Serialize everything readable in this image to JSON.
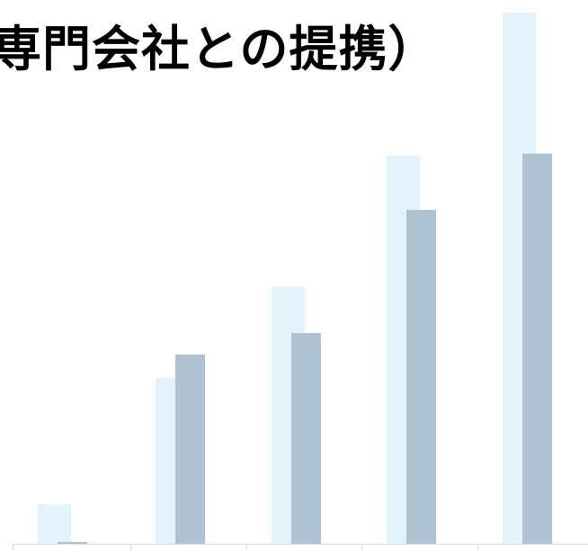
{
  "chart_data": {
    "type": "bar",
    "title": "専門会社との提携）",
    "categories": [
      "",
      "",
      "",
      "",
      ""
    ],
    "series": [
      {
        "values": [
          44,
          186,
          288,
          435,
          595
        ]
      },
      {
        "values": [
          2,
          212,
          236,
          374,
          437
        ]
      }
    ],
    "ylim": [
      0,
      600
    ],
    "grid": false,
    "colors": [
      "#E4F2FC",
      "#AFC2D2"
    ]
  }
}
